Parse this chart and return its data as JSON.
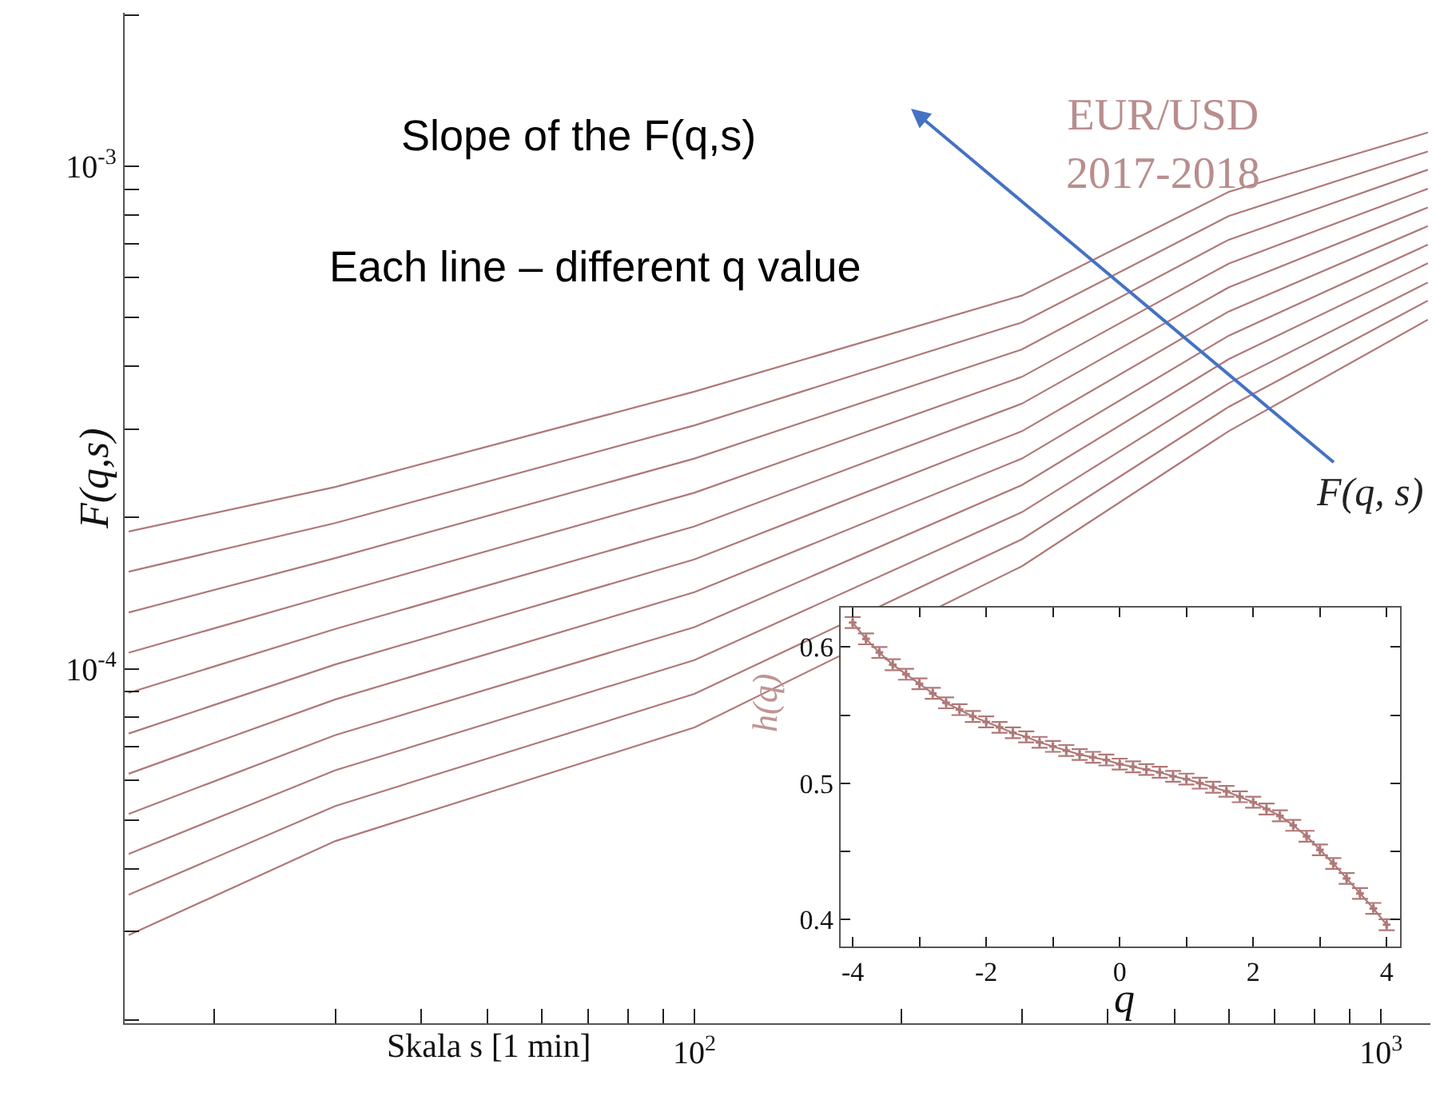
{
  "chart_data": [
    {
      "type": "line",
      "log": "xy",
      "marker": "none",
      "line_style": "solid",
      "x": [
        15,
        30,
        100,
        300,
        600,
        1170
      ],
      "series": [
        {
          "color": "#b07878",
          "values": [
            0.0001875,
            0.00023,
            0.000356,
            0.000553,
            0.000889,
            0.001167
          ]
        },
        {
          "color": "#b07878",
          "values": [
            0.000156,
            0.000195,
            0.000305,
            0.000489,
            0.000796,
            0.00107
          ]
        },
        {
          "color": "#b07878",
          "values": [
            0.0001294,
            0.000166,
            0.000262,
            0.000432,
            0.000714,
            0.000984
          ]
        },
        {
          "color": "#b07878",
          "values": [
            0.0001076,
            0.000141,
            0.000224,
            0.000381,
            0.00064,
            0.000902
          ]
        },
        {
          "color": "#b07878",
          "values": [
            8.95e-05,
            0.00012,
            0.000192,
            0.000337,
            0.000574,
            0.000828
          ]
        },
        {
          "color": "#b07878",
          "values": [
            7.43e-05,
            0.000102,
            0.000165,
            0.000297,
            0.000514,
            0.00076
          ]
        },
        {
          "color": "#b07878",
          "values": [
            6.18e-05,
            8.69e-05,
            0.000142,
            0.000262,
            0.00046,
            0.000698
          ]
        },
        {
          "color": "#b07878",
          "values": [
            5.14e-05,
            7.38e-05,
            0.000121,
            0.000232,
            0.000413,
            0.000641
          ]
        },
        {
          "color": "#b07878",
          "values": [
            4.28e-05,
            6.28e-05,
            0.000104,
            0.000205,
            0.00037,
            0.000587
          ]
        },
        {
          "color": "#b07878",
          "values": [
            3.55e-05,
            5.33e-05,
            8.91e-05,
            0.000181,
            0.000332,
            0.00054
          ]
        },
        {
          "color": "#b07878",
          "values": [
            2.95e-05,
            4.54e-05,
            7.64e-05,
            0.00016,
            0.000297,
            0.000495
          ]
        }
      ],
      "xlim": [
        14.8,
        1180
      ],
      "ylim": [
        1.97e-05,
        0.00202
      ],
      "xticks": [
        {
          "value": 20,
          "label": null
        },
        {
          "value": 30,
          "label": null
        },
        {
          "value": 40,
          "label": null
        },
        {
          "value": 50,
          "label": null
        },
        {
          "value": 60,
          "label": null
        },
        {
          "value": 70,
          "label": null
        },
        {
          "value": 80,
          "label": null
        },
        {
          "value": 90,
          "label": null
        },
        {
          "value": 100,
          "label": "10$^{2}$"
        },
        {
          "value": 200,
          "label": null
        },
        {
          "value": 300,
          "label": null
        },
        {
          "value": 400,
          "label": null
        },
        {
          "value": 500,
          "label": null
        },
        {
          "value": 600,
          "label": null
        },
        {
          "value": 700,
          "label": null
        },
        {
          "value": 800,
          "label": null
        },
        {
          "value": 900,
          "label": null
        },
        {
          "value": 1000,
          "label": "10$^{3}$"
        }
      ],
      "yticks": [
        {
          "value": 2e-05,
          "label": null
        },
        {
          "value": 3e-05,
          "label": null
        },
        {
          "value": 4e-05,
          "label": null
        },
        {
          "value": 5e-05,
          "label": null
        },
        {
          "value": 6e-05,
          "label": null
        },
        {
          "value": 7e-05,
          "label": null
        },
        {
          "value": 8e-05,
          "label": null
        },
        {
          "value": 9e-05,
          "label": null
        },
        {
          "value": 0.0001,
          "label": "10$^{-4}$"
        },
        {
          "value": 0.0002,
          "label": null
        },
        {
          "value": 0.0003,
          "label": null
        },
        {
          "value": 0.0004,
          "label": null
        },
        {
          "value": 0.0005,
          "label": null
        },
        {
          "value": 0.0006,
          "label": null
        },
        {
          "value": 0.0007,
          "label": null
        },
        {
          "value": 0.0008,
          "label": null
        },
        {
          "value": 0.0009,
          "label": null
        },
        {
          "value": 0.001,
          "label": "10$^{-3}$"
        },
        {
          "value": 0.002,
          "label": null
        }
      ],
      "xlabel": "Skala s [1 min]",
      "ylabel": "F(q,s)",
      "annotations": [
        "Slope of the F(q,s)",
        "Each line – different q value",
        "EUR/USD\n2017-2018",
        "F(q, s)"
      ]
    },
    {
      "type": "line",
      "marker": "cross",
      "line_style": "solid",
      "x": [
        -4,
        -3.8,
        -3.6,
        -3.4,
        -3.2,
        -3,
        -2.8,
        -2.6,
        -2.4,
        -2.2,
        -2,
        -1.8,
        -1.6,
        -1.4,
        -1.2,
        -1,
        -0.8,
        -0.6,
        -0.4,
        -0.2,
        0,
        0.2,
        0.4,
        0.6,
        0.8,
        1,
        1.2,
        1.4,
        1.6,
        1.8,
        2,
        2.2,
        2.4,
        2.6,
        2.8,
        3,
        3.2,
        3.4,
        3.6,
        3.8,
        4
      ],
      "series": [
        {
          "color": "#b07878",
          "values": [
            0.618,
            0.606,
            0.596,
            0.587,
            0.58,
            0.573,
            0.566,
            0.559,
            0.554,
            0.549,
            0.545,
            0.541,
            0.537,
            0.534,
            0.53,
            0.527,
            0.524,
            0.521,
            0.519,
            0.517,
            0.514,
            0.512,
            0.51,
            0.508,
            0.505,
            0.503,
            0.5,
            0.497,
            0.494,
            0.49,
            0.486,
            0.481,
            0.476,
            0.469,
            0.461,
            0.451,
            0.441,
            0.43,
            0.419,
            0.408,
            0.396
          ],
          "errors": [
            0.004,
            0.004,
            0.004,
            0.004,
            0.004,
            0.004,
            0.004,
            0.004,
            0.004,
            0.004,
            0.004,
            0.004,
            0.004,
            0.004,
            0.004,
            0.004,
            0.004,
            0.004,
            0.004,
            0.004,
            0.004,
            0.004,
            0.004,
            0.004,
            0.004,
            0.004,
            0.004,
            0.004,
            0.004,
            0.004,
            0.004,
            0.004,
            0.004,
            0.004,
            0.004,
            0.004,
            0.004,
            0.004,
            0.004,
            0.004,
            0.004
          ]
        }
      ],
      "xlim": [
        -4.18,
        4.2
      ],
      "ylim": [
        0.38,
        0.629
      ],
      "xticks": [
        {
          "value": -4,
          "label": "-4"
        },
        {
          "value": -3,
          "label": null
        },
        {
          "value": -2,
          "label": "-2"
        },
        {
          "value": -1,
          "label": null
        },
        {
          "value": 0,
          "label": "0"
        },
        {
          "value": 1,
          "label": null
        },
        {
          "value": 2,
          "label": "2"
        },
        {
          "value": 3,
          "label": null
        },
        {
          "value": 4,
          "label": "4"
        }
      ],
      "yticks": [
        0.4,
        {
          "value": 0.45,
          "label": null
        },
        0.5,
        {
          "value": 0.55,
          "label": null
        },
        0.6
      ],
      "xlabel": "q",
      "ylabel": "h(q)"
    }
  ]
}
